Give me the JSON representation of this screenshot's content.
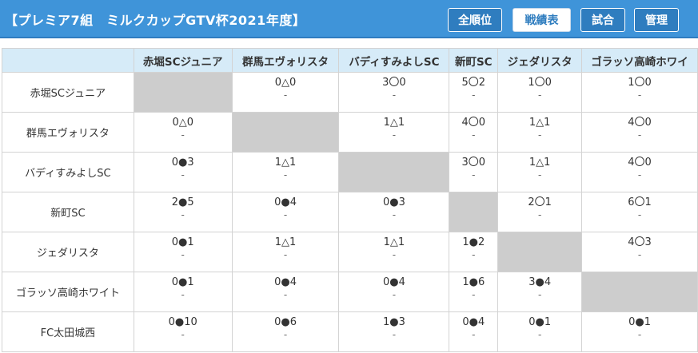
{
  "header": {
    "title": "【プレミア7組　ミルクカップGTV杯2021年度】",
    "buttons": [
      "全順位",
      "戦績表",
      "試合",
      "管理"
    ],
    "active_button": "戦績表"
  },
  "table": {
    "columns": [
      "赤堀SCジュニア",
      "群馬エヴォリスタ",
      "バディすみよしSC",
      "新町SC",
      "ジェダリスタ",
      "ゴラッソ高崎ホワイ"
    ],
    "rows": [
      {
        "team": "赤堀SCジュニア",
        "cells": [
          "",
          "0△0",
          "3〇0",
          "5〇2",
          "1〇0",
          "1〇0"
        ]
      },
      {
        "team": "群馬エヴォリスタ",
        "cells": [
          "0△0",
          "",
          "1△1",
          "4〇0",
          "1△1",
          "4〇0"
        ]
      },
      {
        "team": "バディすみよしSC",
        "cells": [
          "0●3",
          "1△1",
          "",
          "3〇0",
          "1△1",
          "4〇0"
        ]
      },
      {
        "team": "新町SC",
        "cells": [
          "2●5",
          "0●4",
          "0●3",
          "",
          "2〇1",
          "6〇1"
        ]
      },
      {
        "team": "ジェダリスタ",
        "cells": [
          "0●1",
          "1△1",
          "1△1",
          "1●2",
          "",
          "4〇3"
        ]
      },
      {
        "team": "ゴラッソ高崎ホワイト",
        "cells": [
          "0●1",
          "0●4",
          "0●4",
          "1●6",
          "3●4",
          ""
        ]
      },
      {
        "team": "FC太田城西",
        "cells": [
          "0●10",
          "0●6",
          "1●3",
          "0●4",
          "0●1",
          "0●1"
        ]
      }
    ],
    "sub_text": "-"
  },
  "colors": {
    "header_bg": "#3f94d9",
    "column_header_bg": "#d6ebf8",
    "self_cell": "#cdcdcd"
  }
}
